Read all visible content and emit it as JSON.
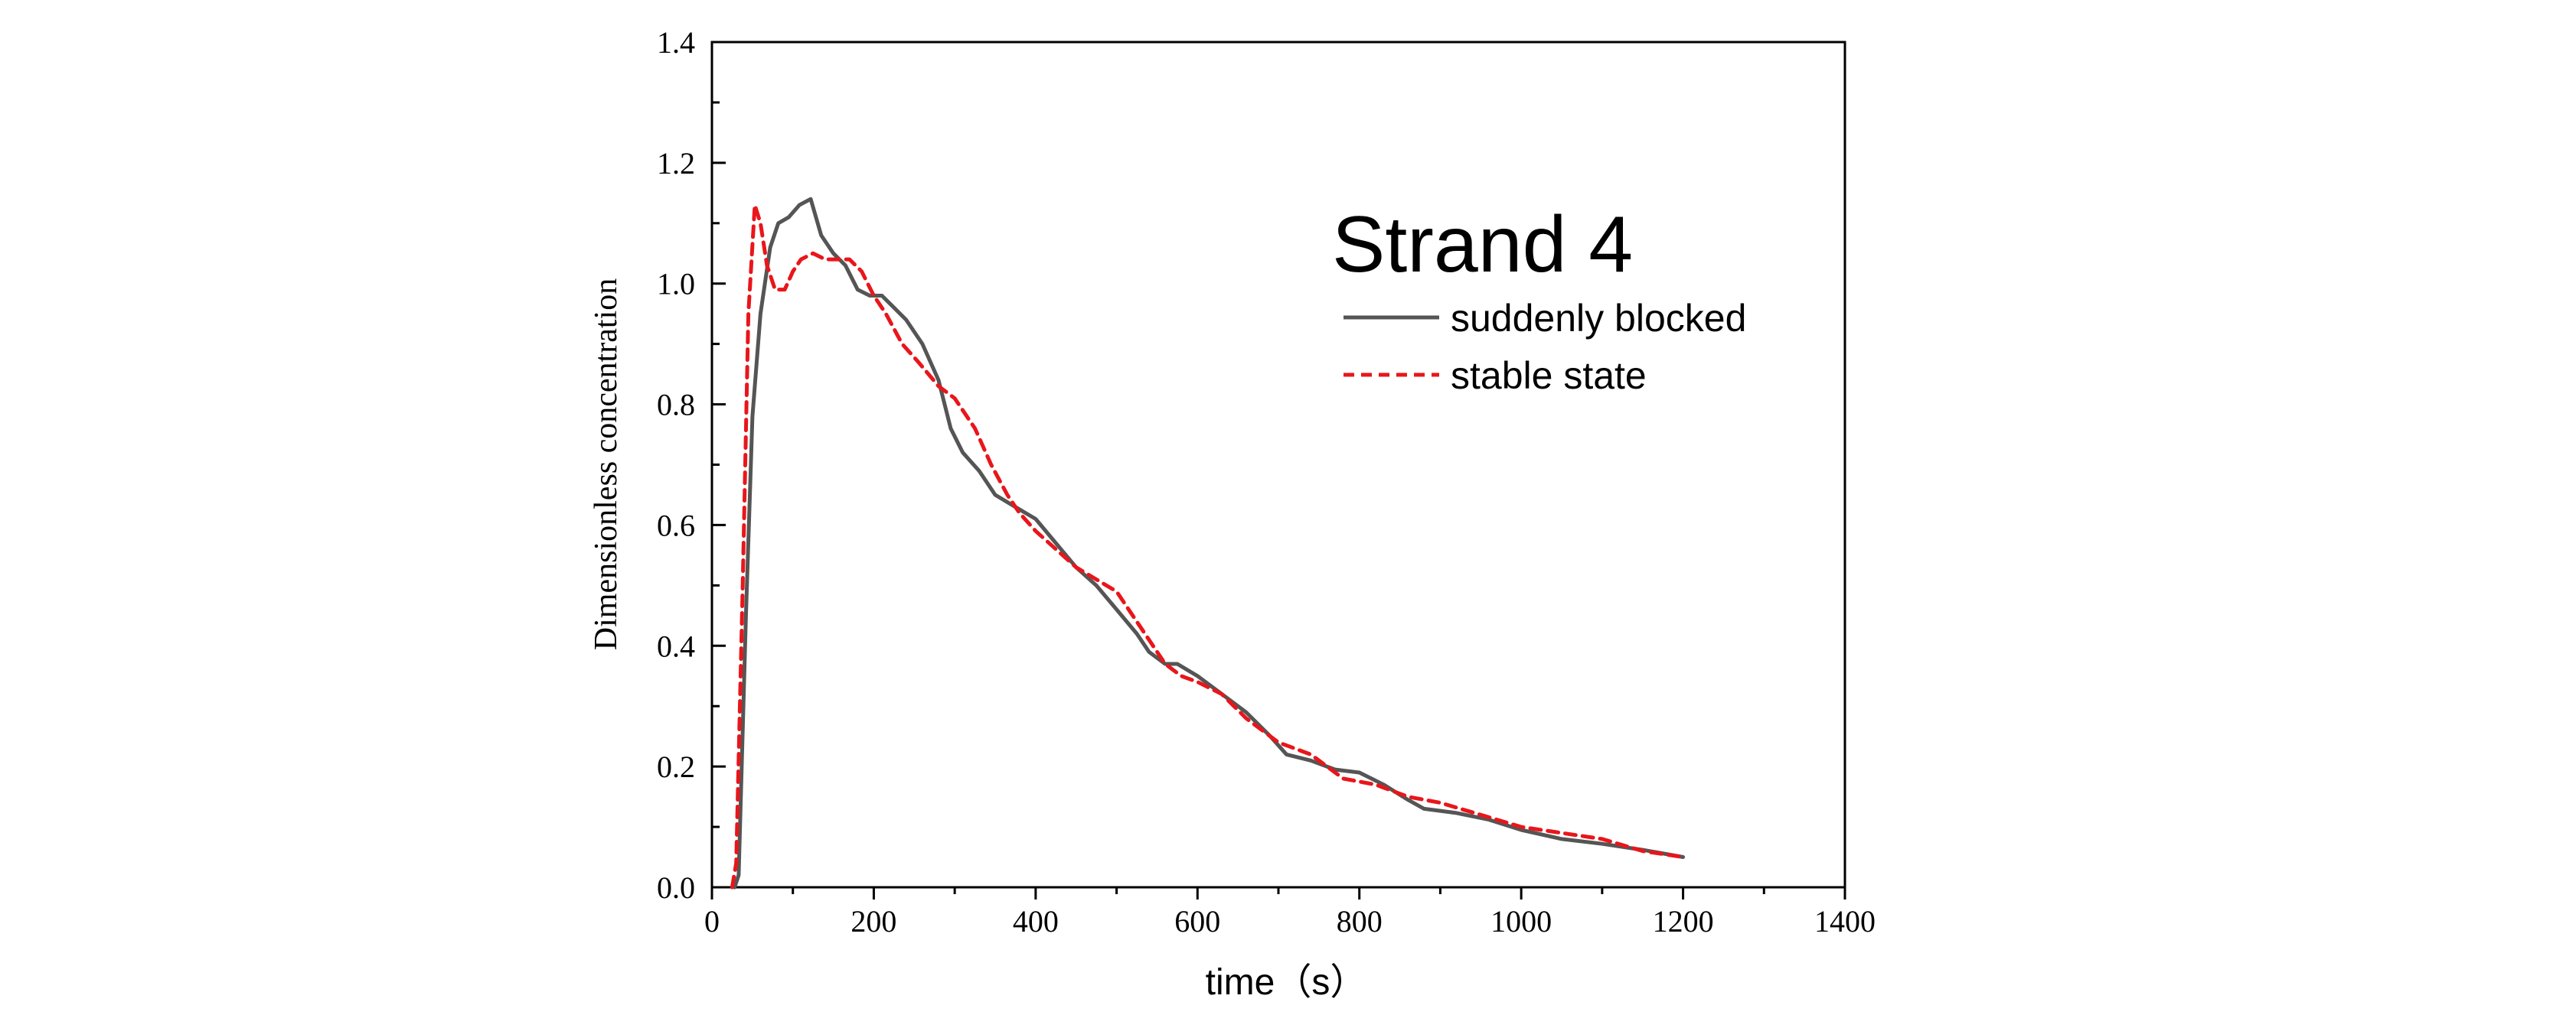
{
  "chart_data": {
    "type": "line",
    "title": "",
    "annotation": "Strand 4",
    "xlabel": "time（s）",
    "ylabel": "Dimensionless concentration",
    "xlim": [
      0,
      1400
    ],
    "ylim": [
      0,
      1.4
    ],
    "x_ticks": [
      "0",
      "200",
      "400",
      "600",
      "800",
      "1000",
      "1200",
      "1400"
    ],
    "y_ticks": [
      "0.0",
      "0.2",
      "0.4",
      "0.6",
      "0.8",
      "1.0",
      "1.2",
      "1.4"
    ],
    "grid": false,
    "legend_position": "upper-right",
    "series": [
      {
        "name": "suddenly blocked",
        "color": "#555555",
        "style": "solid",
        "points": [
          [
            28,
            0
          ],
          [
            33,
            0.02
          ],
          [
            42,
            0.45
          ],
          [
            50,
            0.78
          ],
          [
            60,
            0.95
          ],
          [
            72,
            1.06
          ],
          [
            82,
            1.1
          ],
          [
            95,
            1.11
          ],
          [
            108,
            1.13
          ],
          [
            122,
            1.14
          ],
          [
            135,
            1.08
          ],
          [
            150,
            1.05
          ],
          [
            165,
            1.03
          ],
          [
            180,
            0.99
          ],
          [
            195,
            0.98
          ],
          [
            210,
            0.98
          ],
          [
            225,
            0.96
          ],
          [
            240,
            0.94
          ],
          [
            260,
            0.9
          ],
          [
            280,
            0.84
          ],
          [
            295,
            0.76
          ],
          [
            310,
            0.72
          ],
          [
            330,
            0.69
          ],
          [
            350,
            0.65
          ],
          [
            375,
            0.63
          ],
          [
            400,
            0.61
          ],
          [
            425,
            0.57
          ],
          [
            450,
            0.53
          ],
          [
            475,
            0.5
          ],
          [
            500,
            0.46
          ],
          [
            525,
            0.42
          ],
          [
            540,
            0.39
          ],
          [
            560,
            0.37
          ],
          [
            575,
            0.37
          ],
          [
            600,
            0.35
          ],
          [
            630,
            0.32
          ],
          [
            660,
            0.29
          ],
          [
            690,
            0.25
          ],
          [
            710,
            0.22
          ],
          [
            740,
            0.21
          ],
          [
            770,
            0.195
          ],
          [
            800,
            0.19
          ],
          [
            830,
            0.17
          ],
          [
            860,
            0.145
          ],
          [
            880,
            0.13
          ],
          [
            920,
            0.123
          ],
          [
            960,
            0.112
          ],
          [
            1000,
            0.095
          ],
          [
            1050,
            0.08
          ],
          [
            1100,
            0.072
          ],
          [
            1150,
            0.062
          ],
          [
            1200,
            0.05
          ]
        ]
      },
      {
        "name": "stable state",
        "color": "#e8161b",
        "style": "dashed",
        "points": [
          [
            25,
            0
          ],
          [
            30,
            0.04
          ],
          [
            38,
            0.5
          ],
          [
            45,
            0.95
          ],
          [
            53,
            1.13
          ],
          [
            60,
            1.1
          ],
          [
            68,
            1.03
          ],
          [
            78,
            0.99
          ],
          [
            90,
            0.99
          ],
          [
            100,
            1.02
          ],
          [
            110,
            1.04
          ],
          [
            125,
            1.05
          ],
          [
            140,
            1.04
          ],
          [
            155,
            1.04
          ],
          [
            170,
            1.04
          ],
          [
            185,
            1.02
          ],
          [
            200,
            0.98
          ],
          [
            215,
            0.95
          ],
          [
            235,
            0.9
          ],
          [
            255,
            0.87
          ],
          [
            280,
            0.83
          ],
          [
            300,
            0.81
          ],
          [
            325,
            0.76
          ],
          [
            345,
            0.7
          ],
          [
            365,
            0.65
          ],
          [
            380,
            0.62
          ],
          [
            400,
            0.59
          ],
          [
            425,
            0.56
          ],
          [
            450,
            0.53
          ],
          [
            475,
            0.51
          ],
          [
            500,
            0.49
          ],
          [
            520,
            0.45
          ],
          [
            540,
            0.41
          ],
          [
            560,
            0.37
          ],
          [
            580,
            0.35
          ],
          [
            600,
            0.34
          ],
          [
            630,
            0.32
          ],
          [
            660,
            0.28
          ],
          [
            700,
            0.24
          ],
          [
            740,
            0.22
          ],
          [
            780,
            0.18
          ],
          [
            820,
            0.17
          ],
          [
            860,
            0.15
          ],
          [
            900,
            0.14
          ],
          [
            950,
            0.12
          ],
          [
            1000,
            0.1
          ],
          [
            1050,
            0.09
          ],
          [
            1100,
            0.08
          ],
          [
            1150,
            0.06
          ],
          [
            1200,
            0.05
          ]
        ]
      }
    ]
  }
}
